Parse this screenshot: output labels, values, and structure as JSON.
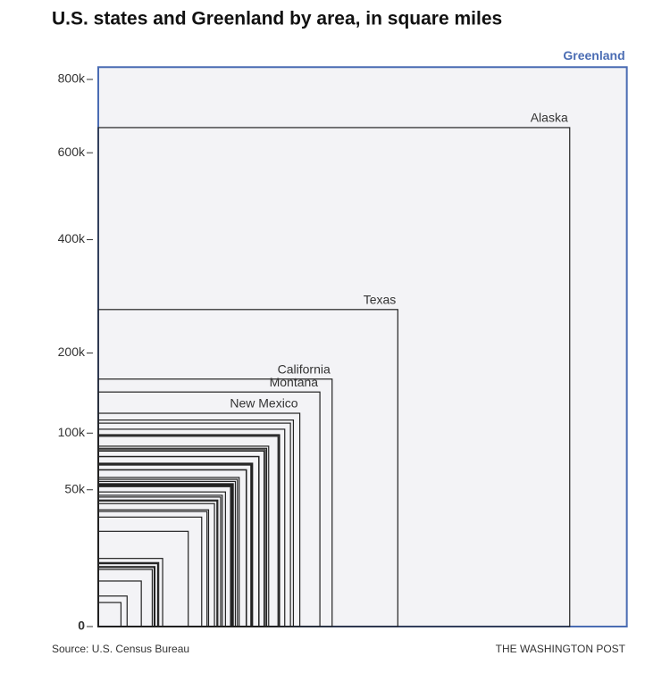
{
  "chart_data": {
    "type": "nested-squares",
    "title": "U.S. states and Greenland by area, in square miles",
    "source": "Source: U.S. Census Bureau",
    "credit": "THE WASHINGTON POST",
    "scale": "sqrt",
    "ylim": [
      0,
      800000
    ],
    "yticks": [
      0,
      {
        "value": 50000,
        "label": "50k"
      },
      {
        "value": 100000,
        "label": "100k"
      },
      {
        "value": 200000,
        "label": "200k"
      },
      {
        "value": 400000,
        "label": "400k"
      },
      {
        "value": 600000,
        "label": "600k"
      },
      {
        "value": 800000,
        "label": "800k"
      }
    ],
    "categories": [
      "Greenland",
      "Alaska",
      "Texas",
      "California",
      "Montana",
      "New Mexico",
      null,
      null,
      null,
      null,
      null,
      null,
      null,
      null,
      null,
      null,
      null,
      null,
      null,
      null,
      null,
      null,
      null,
      null,
      null,
      null,
      null,
      null,
      null,
      null,
      null,
      null,
      null,
      null,
      null,
      null,
      null,
      null,
      null,
      null,
      null,
      null,
      null,
      null,
      null,
      null,
      null,
      null,
      null,
      null,
      null
    ],
    "values": [
      836300,
      665384,
      268596,
      163695,
      147040,
      121590,
      113990,
      110572,
      104094,
      98379,
      97813,
      96714,
      86936,
      84897,
      83569,
      82278,
      77348,
      77116,
      71298,
      70698,
      69899,
      69707,
      65758,
      65496,
      59425,
      57914,
      56273,
      54555,
      53819,
      53179,
      52420,
      52378,
      48432,
      46054,
      44826,
      42775,
      42144,
      40408,
      36420,
      35380,
      32020,
      24230,
      12406,
      10932,
      10554,
      9616,
      9349,
      8723,
      5543,
      2489,
      1545
    ],
    "highlight_color": "#4a6cb3",
    "color": "#222222",
    "background": "#f3f3f6"
  }
}
